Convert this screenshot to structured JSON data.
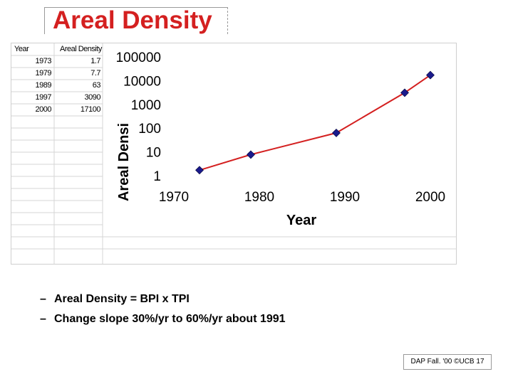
{
  "slide": {
    "title": "Areal Density",
    "bullets": [
      "Areal Density = BPI x TPI",
      "Change slope 30%/yr to 60%/yr about 1991"
    ],
    "footer": "DAP Fall. '00 ©UCB 17"
  },
  "table": {
    "headers": [
      "Year",
      "Areal Density"
    ],
    "rows": [
      [
        "1973",
        "1.7"
      ],
      [
        "1979",
        "7.7"
      ],
      [
        "1989",
        "63"
      ],
      [
        "1997",
        "3090"
      ],
      [
        "2000",
        "17100"
      ]
    ]
  },
  "chart_data": {
    "type": "line",
    "title": "",
    "xlabel": "Year",
    "ylabel": "Areal Densi",
    "x": [
      1973,
      1979,
      1989,
      1997,
      2000
    ],
    "y": [
      1.7,
      7.7,
      63,
      3090,
      17100
    ],
    "xlim": [
      1970,
      2000
    ],
    "ylim": [
      1,
      100000
    ],
    "y_scale": "log",
    "x_ticks": [
      "1970",
      "1980",
      "1990",
      "2000"
    ],
    "y_ticks": [
      "1",
      "10",
      "100",
      "1000",
      "10000",
      "100000"
    ],
    "grid": false,
    "legend": false,
    "colors": {
      "line": "#d42020",
      "marker": "#1a1a8c"
    }
  }
}
